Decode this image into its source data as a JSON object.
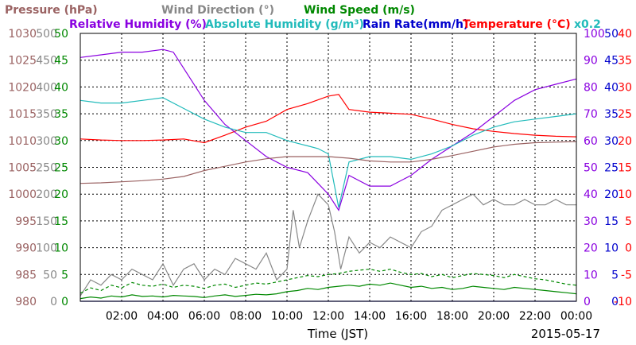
{
  "chart_data": {
    "type": "line",
    "date": "2015-05-17",
    "xlabel": "Time (JST)",
    "x_ticks": [
      "02:00",
      "04:00",
      "06:00",
      "08:00",
      "10:00",
      "12:00",
      "14:00",
      "16:00",
      "18:00",
      "20:00",
      "22:00",
      "00:00"
    ],
    "legend": [
      {
        "label": "Pressure (hPa)",
        "color": "#9a6262"
      },
      {
        "label": "Wind Direction (°)",
        "color": "#888888"
      },
      {
        "label": "Wind Speed (m/s)",
        "color": "#008800"
      },
      {
        "label": "Relative Humidity (%)",
        "color": "#8a00e0"
      },
      {
        "label": "Absolute Humidity (g/m³)",
        "color": "#22bbbb"
      },
      {
        "label": "Rain Rate(mm/h)",
        "color": "#0000cc"
      },
      {
        "label": "Temperature (°C)",
        "color": "#ff0000"
      },
      {
        "label": "x0.2",
        "color": "#22bbbb"
      }
    ],
    "axes": {
      "pressure": {
        "color": "#9a6262",
        "ticks": [
          "1030",
          "1025",
          "1020",
          "1015",
          "1010",
          "1005",
          "1000",
          "995",
          "990",
          "985",
          "980"
        ],
        "range": [
          980,
          1030
        ]
      },
      "wind_direction": {
        "color": "#888888",
        "ticks": [
          "500",
          "450",
          "400",
          "350",
          "300",
          "250",
          "200",
          "150",
          "100",
          "50",
          "0"
        ],
        "range": [
          0,
          500
        ]
      },
      "wind_speed": {
        "color": "#008800",
        "ticks": [
          "50",
          "45",
          "40",
          "35",
          "30",
          "25",
          "20",
          "15",
          "10",
          "5",
          "0"
        ],
        "range": [
          0,
          50
        ]
      },
      "humidity": {
        "color": "#8a00e0",
        "ticks": [
          "100",
          "90",
          "80",
          "70",
          "60",
          "50",
          "40",
          "30",
          "20",
          "10",
          "0"
        ],
        "range": [
          0,
          100
        ]
      },
      "rain_rate": {
        "color": "#0000cc",
        "ticks": [
          "50",
          "45",
          "40",
          "35",
          "30",
          "25",
          "20",
          "15",
          "10",
          "5",
          "0"
        ],
        "range": [
          0,
          50
        ]
      },
      "temperature": {
        "color": "#ff0000",
        "ticks": [
          "40",
          "35",
          "30",
          "25",
          "20",
          "15",
          "10",
          "5",
          "0",
          "-5",
          "-10"
        ],
        "range": [
          -10,
          40
        ]
      }
    },
    "series": [
      {
        "name": "Temperature (°C)",
        "color": "#ff0000",
        "axis": "temperature",
        "x": [
          0,
          1,
          2,
          3,
          4,
          5,
          6,
          7,
          8,
          9,
          10,
          11,
          12,
          12.5,
          13,
          14,
          15,
          16,
          17,
          18,
          19,
          20,
          21,
          22,
          23,
          24
        ],
        "y": [
          20.3,
          20.1,
          20.0,
          20.0,
          20.1,
          20.3,
          19.6,
          21.0,
          22.5,
          23.6,
          25.8,
          26.9,
          28.3,
          28.6,
          25.8,
          25.3,
          25.1,
          24.9,
          24.0,
          23.0,
          22.2,
          21.7,
          21.3,
          21.0,
          20.8,
          20.7
        ]
      },
      {
        "name": "Relative Humidity (%)",
        "color": "#8a00e0",
        "axis": "humidity",
        "x": [
          0,
          1,
          2,
          3,
          4,
          4.5,
          5,
          6,
          7,
          8,
          9,
          10,
          11,
          11.5,
          12,
          12.5,
          13,
          14,
          15,
          16,
          17,
          18,
          19,
          20,
          21,
          22,
          23,
          24
        ],
        "y": [
          91,
          92,
          93,
          93,
          94,
          93,
          87,
          75,
          66,
          60,
          54,
          50,
          48,
          44,
          40,
          34,
          47,
          43,
          43,
          47,
          53,
          58,
          63,
          69,
          75,
          79,
          81,
          83
        ]
      },
      {
        "name": "Absolute Humidity (g/m³)",
        "color": "#22bbbb",
        "axis": "humidity",
        "x": [
          0,
          1,
          2,
          3,
          4,
          5,
          6,
          7,
          8,
          9,
          10,
          11,
          11.5,
          12,
          12.5,
          13,
          14,
          15,
          16,
          17,
          18,
          19,
          20,
          21,
          22,
          23,
          24
        ],
        "y": [
          75,
          74,
          74,
          75,
          76,
          72,
          68,
          65,
          63,
          63,
          60,
          58,
          57,
          55,
          35,
          52,
          54,
          54,
          53,
          55,
          58,
          62,
          65,
          67,
          68,
          69,
          70
        ]
      },
      {
        "name": "Pressure (hPa)",
        "color": "#9a6262",
        "axis": "pressure",
        "x": [
          0,
          1,
          2,
          3,
          4,
          5,
          6,
          7,
          8,
          9,
          10,
          11,
          12,
          13,
          14,
          15,
          16,
          17,
          18,
          19,
          20,
          21,
          22,
          23,
          24
        ],
        "y": [
          1002.0,
          1002.1,
          1002.3,
          1002.5,
          1002.8,
          1003.3,
          1004.4,
          1005.2,
          1006.0,
          1006.6,
          1007.0,
          1007.0,
          1007.0,
          1006.7,
          1006.2,
          1006.0,
          1006.0,
          1006.5,
          1007.2,
          1008.0,
          1008.8,
          1009.3,
          1009.6,
          1009.7,
          1009.8
        ]
      },
      {
        "name": "Wind Direction (°)",
        "color": "#888888",
        "axis": "wind_direction",
        "x": [
          0,
          0.5,
          1,
          1.5,
          2,
          2.5,
          3,
          3.5,
          4,
          4.5,
          5,
          5.5,
          6,
          6.5,
          7,
          7.5,
          8,
          8.5,
          9,
          9.5,
          10,
          10.3,
          10.6,
          11,
          11.5,
          12,
          12.3,
          12.6,
          13,
          13.5,
          14,
          14.5,
          15,
          15.5,
          16,
          16.5,
          17,
          17.5,
          18,
          18.5,
          19,
          19.5,
          20,
          20.5,
          21,
          21.5,
          22,
          22.5,
          23,
          23.5,
          24
        ],
        "y": [
          10,
          40,
          30,
          50,
          40,
          60,
          50,
          40,
          70,
          30,
          60,
          70,
          40,
          60,
          50,
          80,
          70,
          60,
          90,
          40,
          60,
          170,
          100,
          150,
          200,
          180,
          130,
          60,
          120,
          90,
          110,
          100,
          120,
          110,
          100,
          130,
          140,
          170,
          180,
          190,
          200,
          180,
          190,
          180,
          180,
          190,
          180,
          180,
          190,
          180,
          180
        ]
      },
      {
        "name": "Wind Speed (m/s)",
        "color": "#008800",
        "axis": "wind_speed",
        "x": [
          0,
          0.5,
          1,
          1.5,
          2,
          2.5,
          3,
          3.5,
          4,
          4.5,
          5,
          5.5,
          6,
          6.5,
          7,
          7.5,
          8,
          8.5,
          9,
          9.5,
          10,
          10.5,
          11,
          11.5,
          12,
          12.5,
          13,
          13.5,
          14,
          14.5,
          15,
          15.5,
          16,
          16.5,
          17,
          17.5,
          18,
          18.5,
          19,
          19.5,
          20,
          20.5,
          21,
          21.5,
          22,
          22.5,
          23,
          23.5,
          24
        ],
        "y": [
          0.5,
          0.8,
          0.6,
          1.0,
          0.8,
          1.2,
          0.9,
          1.0,
          0.8,
          1.1,
          1.0,
          0.9,
          0.7,
          1.0,
          1.2,
          0.9,
          1.1,
          1.3,
          1.2,
          1.4,
          1.8,
          2.0,
          2.4,
          2.2,
          2.6,
          2.8,
          3.0,
          2.8,
          3.2,
          3.0,
          3.4,
          3.0,
          2.6,
          2.8,
          2.4,
          2.6,
          2.2,
          2.4,
          2.8,
          2.6,
          2.4,
          2.2,
          2.6,
          2.4,
          2.2,
          2.0,
          1.8,
          1.6,
          1.4
        ]
      },
      {
        "name": "Wind Speed gust",
        "color": "#008800",
        "axis": "wind_speed",
        "dashed": true,
        "x": [
          0,
          0.5,
          1,
          1.5,
          2,
          2.5,
          3,
          3.5,
          4,
          4.5,
          5,
          5.5,
          6,
          6.5,
          7,
          7.5,
          8,
          8.5,
          9,
          9.5,
          10,
          10.5,
          11,
          11.5,
          12,
          12.5,
          13,
          13.5,
          14,
          14.5,
          15,
          15.5,
          16,
          16.5,
          17,
          17.5,
          18,
          18.5,
          19,
          19.5,
          20,
          20.5,
          21,
          21.5,
          22,
          22.5,
          23,
          23.5,
          24
        ],
        "y": [
          1.5,
          2.5,
          2.0,
          3.0,
          2.5,
          3.5,
          3.0,
          2.8,
          3.2,
          2.6,
          3.0,
          2.8,
          2.4,
          3.0,
          3.2,
          2.6,
          3.0,
          3.4,
          3.2,
          3.6,
          4.0,
          4.4,
          4.8,
          4.6,
          5.0,
          5.2,
          5.6,
          5.8,
          6.0,
          5.6,
          6.0,
          5.4,
          5.0,
          5.2,
          4.6,
          5.0,
          4.4,
          4.8,
          5.2,
          5.0,
          4.8,
          4.4,
          5.0,
          4.6,
          4.2,
          4.0,
          3.6,
          3.2,
          3.0
        ]
      },
      {
        "name": "Rain Rate(mm/h)",
        "color": "#0000cc",
        "axis": "rain_rate",
        "x": [
          0,
          24
        ],
        "y": [
          0,
          0
        ]
      }
    ]
  }
}
